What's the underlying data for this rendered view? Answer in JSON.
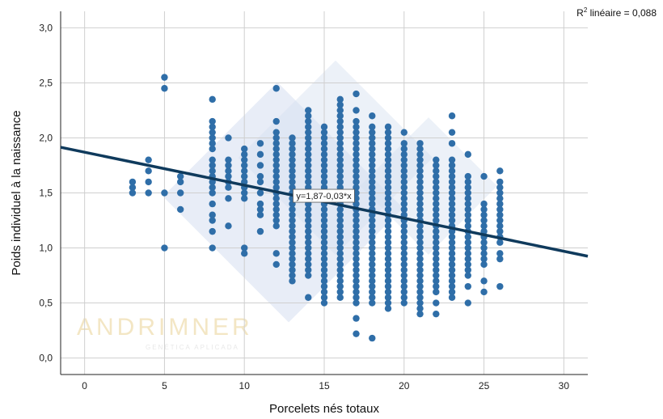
{
  "chart_data": {
    "type": "scatter",
    "title": "",
    "xlabel": "Porcelets nés totaux",
    "ylabel": "Poids individuel à la naissance",
    "xlim": [
      -1.5,
      31.5
    ],
    "ylim": [
      -0.15,
      3.15
    ],
    "x_ticks": [
      "0",
      "5",
      "10",
      "15",
      "20",
      "25",
      "30"
    ],
    "y_ticks": [
      "0,0",
      "0,5",
      "1,0",
      "1,5",
      "2,0",
      "2,5",
      "3,0"
    ],
    "grid": true,
    "point_color": "#2f6ea8",
    "line_color": "#0f3a5c",
    "fit_line": {
      "intercept": 1.87,
      "slope": -0.03,
      "label": "y=1,87-0,03*x"
    },
    "r2": {
      "prefix": "R",
      "sup": "2",
      "text": " linéaire = 0,088"
    },
    "watermark": {
      "brand": "ANDRIMNER",
      "tagline": "GENÉTICA APLICADA"
    },
    "series": [
      {
        "x": 3,
        "y": [
          1.5,
          1.55,
          1.6
        ]
      },
      {
        "x": 4,
        "y": [
          1.5,
          1.6,
          1.7,
          1.8
        ]
      },
      {
        "x": 5,
        "y": [
          1.0,
          1.5,
          2.45,
          2.55
        ]
      },
      {
        "x": 6,
        "y": [
          1.35,
          1.5,
          1.6,
          1.65
        ]
      },
      {
        "x": 8,
        "y": [
          1.0,
          1.15,
          1.25,
          1.3,
          1.4,
          1.5,
          1.55,
          1.6,
          1.65,
          1.7,
          1.75,
          1.8,
          1.9,
          1.95,
          2.0,
          2.05,
          2.1,
          2.15,
          2.35
        ]
      },
      {
        "x": 9,
        "y": [
          1.2,
          1.45,
          1.55,
          1.6,
          1.65,
          1.7,
          1.75,
          1.8,
          2.0
        ]
      },
      {
        "x": 10,
        "y": [
          0.95,
          1.0,
          1.45,
          1.5,
          1.55,
          1.6,
          1.65,
          1.7,
          1.75,
          1.8,
          1.85,
          1.9
        ]
      },
      {
        "x": 11,
        "y": [
          1.15,
          1.3,
          1.35,
          1.4,
          1.5,
          1.6,
          1.65,
          1.75,
          1.85,
          1.95
        ]
      },
      {
        "x": 12,
        "y": [
          0.85,
          0.95,
          1.2,
          1.25,
          1.3,
          1.35,
          1.4,
          1.45,
          1.5,
          1.55,
          1.6,
          1.65,
          1.7,
          1.75,
          1.8,
          1.85,
          1.9,
          1.95,
          2.0,
          2.05,
          2.15,
          2.45
        ]
      },
      {
        "x": 13,
        "y": [
          0.7,
          0.75,
          0.8,
          0.85,
          0.9,
          0.95,
          1.0,
          1.05,
          1.1,
          1.15,
          1.2,
          1.25,
          1.3,
          1.35,
          1.4,
          1.45,
          1.5,
          1.55,
          1.6,
          1.65,
          1.7,
          1.75,
          1.8,
          1.85,
          1.9,
          1.95,
          2.0
        ]
      },
      {
        "x": 14,
        "y": [
          0.55,
          0.75,
          0.8,
          0.85,
          0.9,
          0.95,
          1.0,
          1.05,
          1.1,
          1.15,
          1.2,
          1.25,
          1.3,
          1.35,
          1.4,
          1.45,
          1.5,
          1.55,
          1.6,
          1.65,
          1.7,
          1.75,
          1.8,
          1.85,
          1.9,
          1.95,
          2.0,
          2.05,
          2.1,
          2.15,
          2.2,
          2.25
        ]
      },
      {
        "x": 15,
        "y": [
          0.5,
          0.55,
          0.6,
          0.65,
          0.7,
          0.75,
          0.8,
          0.85,
          0.9,
          0.95,
          1.0,
          1.05,
          1.1,
          1.15,
          1.2,
          1.25,
          1.3,
          1.35,
          1.4,
          1.45,
          1.5,
          1.55,
          1.6,
          1.65,
          1.7,
          1.75,
          1.8,
          1.85,
          1.9,
          1.95,
          2.0,
          2.05,
          2.1
        ]
      },
      {
        "x": 16,
        "y": [
          0.55,
          0.6,
          0.65,
          0.7,
          0.75,
          0.8,
          0.85,
          0.9,
          0.95,
          1.0,
          1.05,
          1.1,
          1.15,
          1.2,
          1.25,
          1.3,
          1.35,
          1.4,
          1.45,
          1.5,
          1.55,
          1.6,
          1.65,
          1.7,
          1.75,
          1.8,
          1.85,
          1.9,
          1.95,
          2.0,
          2.05,
          2.1,
          2.15,
          2.2,
          2.25,
          2.3,
          2.35
        ]
      },
      {
        "x": 17,
        "y": [
          0.22,
          0.36,
          0.5,
          0.55,
          0.6,
          0.65,
          0.7,
          0.75,
          0.8,
          0.85,
          0.9,
          0.95,
          1.0,
          1.05,
          1.1,
          1.15,
          1.2,
          1.25,
          1.3,
          1.35,
          1.4,
          1.45,
          1.5,
          1.55,
          1.6,
          1.65,
          1.7,
          1.75,
          1.8,
          1.85,
          1.9,
          1.95,
          2.0,
          2.05,
          2.1,
          2.15,
          2.25,
          2.4
        ]
      },
      {
        "x": 18,
        "y": [
          0.18,
          0.5,
          0.55,
          0.6,
          0.65,
          0.7,
          0.75,
          0.8,
          0.85,
          0.9,
          0.95,
          1.0,
          1.05,
          1.1,
          1.15,
          1.2,
          1.25,
          1.3,
          1.35,
          1.4,
          1.45,
          1.5,
          1.55,
          1.6,
          1.65,
          1.7,
          1.75,
          1.8,
          1.85,
          1.9,
          1.95,
          2.0,
          2.05,
          2.1,
          2.2
        ]
      },
      {
        "x": 19,
        "y": [
          0.45,
          0.5,
          0.55,
          0.6,
          0.65,
          0.7,
          0.75,
          0.8,
          0.85,
          0.9,
          0.95,
          1.0,
          1.05,
          1.1,
          1.15,
          1.2,
          1.25,
          1.3,
          1.35,
          1.4,
          1.45,
          1.5,
          1.55,
          1.6,
          1.65,
          1.7,
          1.75,
          1.8,
          1.85,
          1.9,
          1.95,
          2.0,
          2.05,
          2.1
        ]
      },
      {
        "x": 20,
        "y": [
          0.5,
          0.55,
          0.6,
          0.65,
          0.7,
          0.75,
          0.8,
          0.85,
          0.9,
          0.95,
          1.0,
          1.05,
          1.1,
          1.15,
          1.2,
          1.25,
          1.3,
          1.35,
          1.4,
          1.45,
          1.5,
          1.55,
          1.6,
          1.65,
          1.7,
          1.75,
          1.8,
          1.85,
          1.9,
          1.95,
          2.05
        ]
      },
      {
        "x": 21,
        "y": [
          0.4,
          0.45,
          0.5,
          0.55,
          0.6,
          0.65,
          0.7,
          0.75,
          0.8,
          0.85,
          0.9,
          0.95,
          1.0,
          1.05,
          1.1,
          1.15,
          1.2,
          1.25,
          1.3,
          1.35,
          1.4,
          1.45,
          1.5,
          1.55,
          1.6,
          1.65,
          1.7,
          1.75,
          1.8,
          1.85,
          1.9,
          1.95
        ]
      },
      {
        "x": 22,
        "y": [
          0.4,
          0.5,
          0.6,
          0.65,
          0.7,
          0.75,
          0.8,
          0.85,
          0.9,
          0.95,
          1.0,
          1.05,
          1.1,
          1.15,
          1.2,
          1.25,
          1.3,
          1.35,
          1.4,
          1.45,
          1.5,
          1.55,
          1.6,
          1.65,
          1.7,
          1.75,
          1.8
        ]
      },
      {
        "x": 23,
        "y": [
          0.55,
          0.6,
          0.65,
          0.7,
          0.75,
          0.8,
          0.85,
          0.9,
          0.95,
          1.0,
          1.05,
          1.1,
          1.15,
          1.2,
          1.25,
          1.3,
          1.35,
          1.4,
          1.45,
          1.5,
          1.55,
          1.6,
          1.65,
          1.7,
          1.75,
          1.8,
          1.95,
          2.05,
          2.2
        ]
      },
      {
        "x": 24,
        "y": [
          0.5,
          0.65,
          0.75,
          0.8,
          0.85,
          0.9,
          0.95,
          1.0,
          1.05,
          1.1,
          1.15,
          1.2,
          1.25,
          1.3,
          1.35,
          1.4,
          1.45,
          1.5,
          1.55,
          1.6,
          1.65,
          1.85
        ]
      },
      {
        "x": 25,
        "y": [
          0.6,
          0.7,
          0.85,
          0.9,
          0.95,
          1.0,
          1.05,
          1.1,
          1.15,
          1.2,
          1.25,
          1.3,
          1.35,
          1.4,
          1.65
        ]
      },
      {
        "x": 26,
        "y": [
          0.65,
          0.9,
          0.95,
          1.05,
          1.1,
          1.15,
          1.2,
          1.25,
          1.3,
          1.35,
          1.4,
          1.45,
          1.5,
          1.55,
          1.6,
          1.7
        ]
      }
    ]
  }
}
